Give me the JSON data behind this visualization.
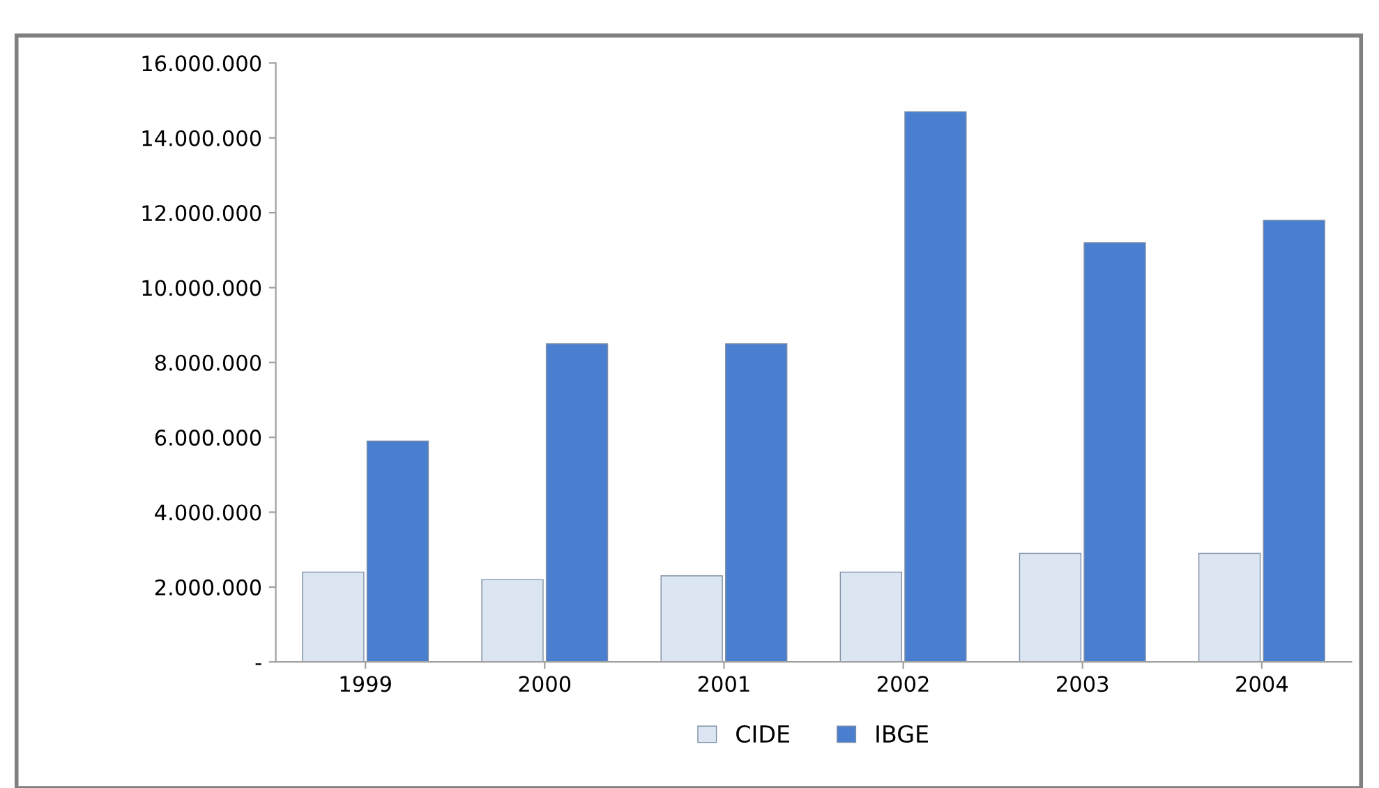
{
  "chart_data": {
    "type": "bar",
    "categories": [
      "1999",
      "2000",
      "2001",
      "2002",
      "2003",
      "2004"
    ],
    "series": [
      {
        "name": "CIDE",
        "color": "#dce6f2",
        "values": [
          2400000,
          2200000,
          2300000,
          2400000,
          2900000,
          2900000
        ]
      },
      {
        "name": "IBGE",
        "color": "#4a7fcf",
        "values": [
          5900000,
          8500000,
          8500000,
          14700000,
          11200000,
          11800000
        ]
      }
    ],
    "ylim": [
      0,
      16000000
    ],
    "yticks": [
      {
        "value": 0,
        "label": "-"
      },
      {
        "value": 2000000,
        "label": "2.000.000"
      },
      {
        "value": 4000000,
        "label": "4.000.000"
      },
      {
        "value": 6000000,
        "label": "6.000.000"
      },
      {
        "value": 8000000,
        "label": "8.000.000"
      },
      {
        "value": 10000000,
        "label": "10.000.000"
      },
      {
        "value": 12000000,
        "label": "12.000.000"
      },
      {
        "value": 14000000,
        "label": "14.000.000"
      },
      {
        "value": 16000000,
        "label": "16.000.000"
      }
    ],
    "grid": false,
    "legend": "bottom"
  }
}
